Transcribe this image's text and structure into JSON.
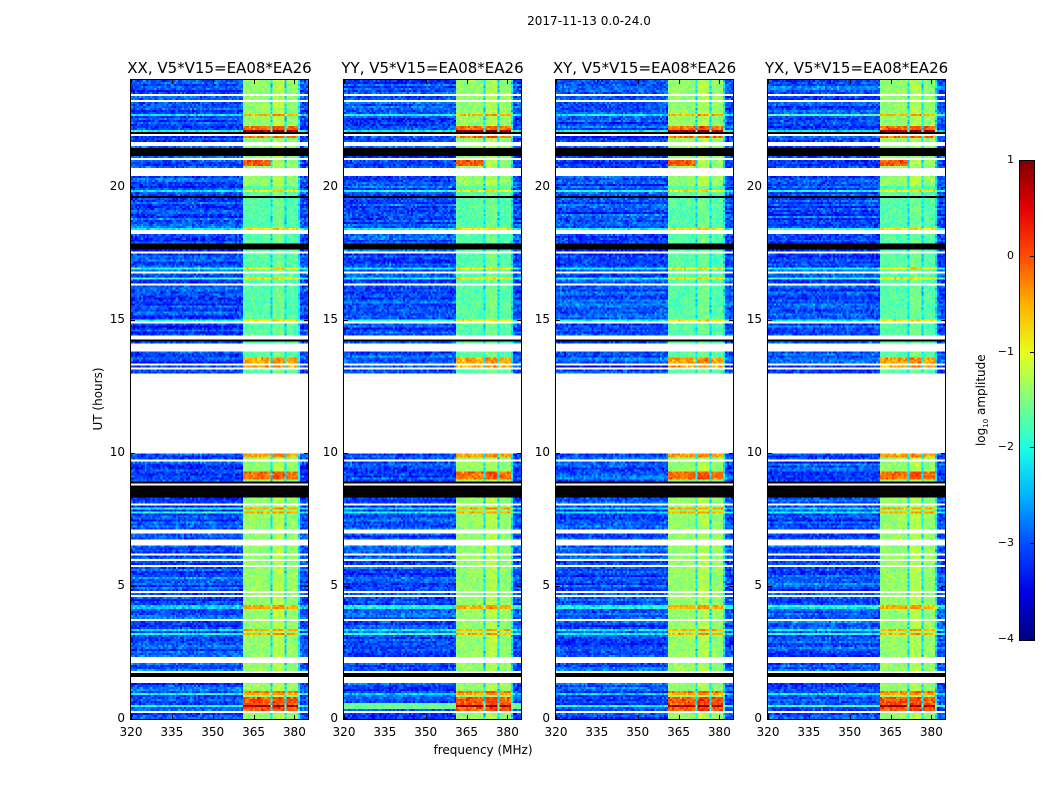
{
  "title": "2017-11-13 0.0-24.0",
  "chart_data": {
    "type": "heatmap",
    "title": "2017-11-13 0.0-24.0",
    "xlabel": "frequency (MHz)",
    "ylabel": "UT (hours)",
    "xlim": [
      320,
      385
    ],
    "ylim": [
      0,
      24
    ],
    "xticks": [
      "320",
      "335",
      "350",
      "365",
      "380"
    ],
    "xtick_values": [
      320,
      335,
      350,
      365,
      380
    ],
    "yticks": [
      "0",
      "5",
      "10",
      "15",
      "20"
    ],
    "ytick_values": [
      0,
      5,
      10,
      15,
      20
    ],
    "panels": [
      {
        "title": "XX, V5*V15=EA08*EA26",
        "seed": 11
      },
      {
        "title": "YY, V5*V15=EA08*EA26",
        "seed": 23
      },
      {
        "title": "XY, V5*V15=EA08*EA26",
        "seed": 37
      },
      {
        "title": "YX, V5*V15=EA08*EA26",
        "seed": 53
      }
    ],
    "colorbar": {
      "label_main": "log",
      "label_sub": "10",
      "label_rest": " amplitude",
      "range": [
        -4,
        1
      ],
      "ticks": [
        "1",
        "0",
        "−1",
        "−2",
        "−3",
        "−4"
      ],
      "tick_values": [
        1,
        0,
        -1,
        -2,
        -3,
        -4
      ],
      "colormap": "jet"
    },
    "background_level": -3.0,
    "band_level": -1.4,
    "bands_mhz": [
      [
        361.5,
        366.0
      ],
      [
        366.5,
        371.3
      ],
      [
        371.8,
        376.5
      ],
      [
        377.0,
        381.5
      ]
    ],
    "flagged_hours": [
      [
        10.0,
        13.0
      ],
      [
        20.4,
        20.7
      ],
      [
        21.5,
        21.7
      ],
      [
        14.25,
        14.4
      ],
      [
        13.8,
        14.1
      ],
      [
        6.5,
        6.75
      ],
      [
        8.0,
        8.1
      ],
      [
        2.1,
        2.3
      ],
      [
        1.35,
        1.55
      ]
    ],
    "zero_hours": [
      [
        21.15,
        21.45
      ],
      [
        19.6,
        19.66
      ],
      [
        17.65,
        17.85
      ],
      [
        8.35,
        8.95
      ],
      [
        1.6,
        1.7
      ],
      [
        22.0,
        22.04
      ],
      [
        14.15,
        14.22
      ]
    ],
    "hot_hours": [
      {
        "range": [
          0.3,
          0.8
        ],
        "boost": 1.4
      },
      {
        "range": [
          0.95,
          1.05
        ],
        "boost": 1.2
      },
      {
        "range": [
          13.2,
          13.6
        ],
        "boost": 1.3
      },
      {
        "range": [
          21.8,
          22.3
        ],
        "boost": 1.3
      },
      {
        "range": [
          9.0,
          9.3
        ],
        "boost": 1.3
      },
      {
        "range": [
          9.8,
          10.0
        ],
        "boost": 1.0
      },
      {
        "range": [
          20.8,
          21.1
        ],
        "boost": 1.4,
        "bands": [
          0,
          1
        ]
      }
    ]
  }
}
